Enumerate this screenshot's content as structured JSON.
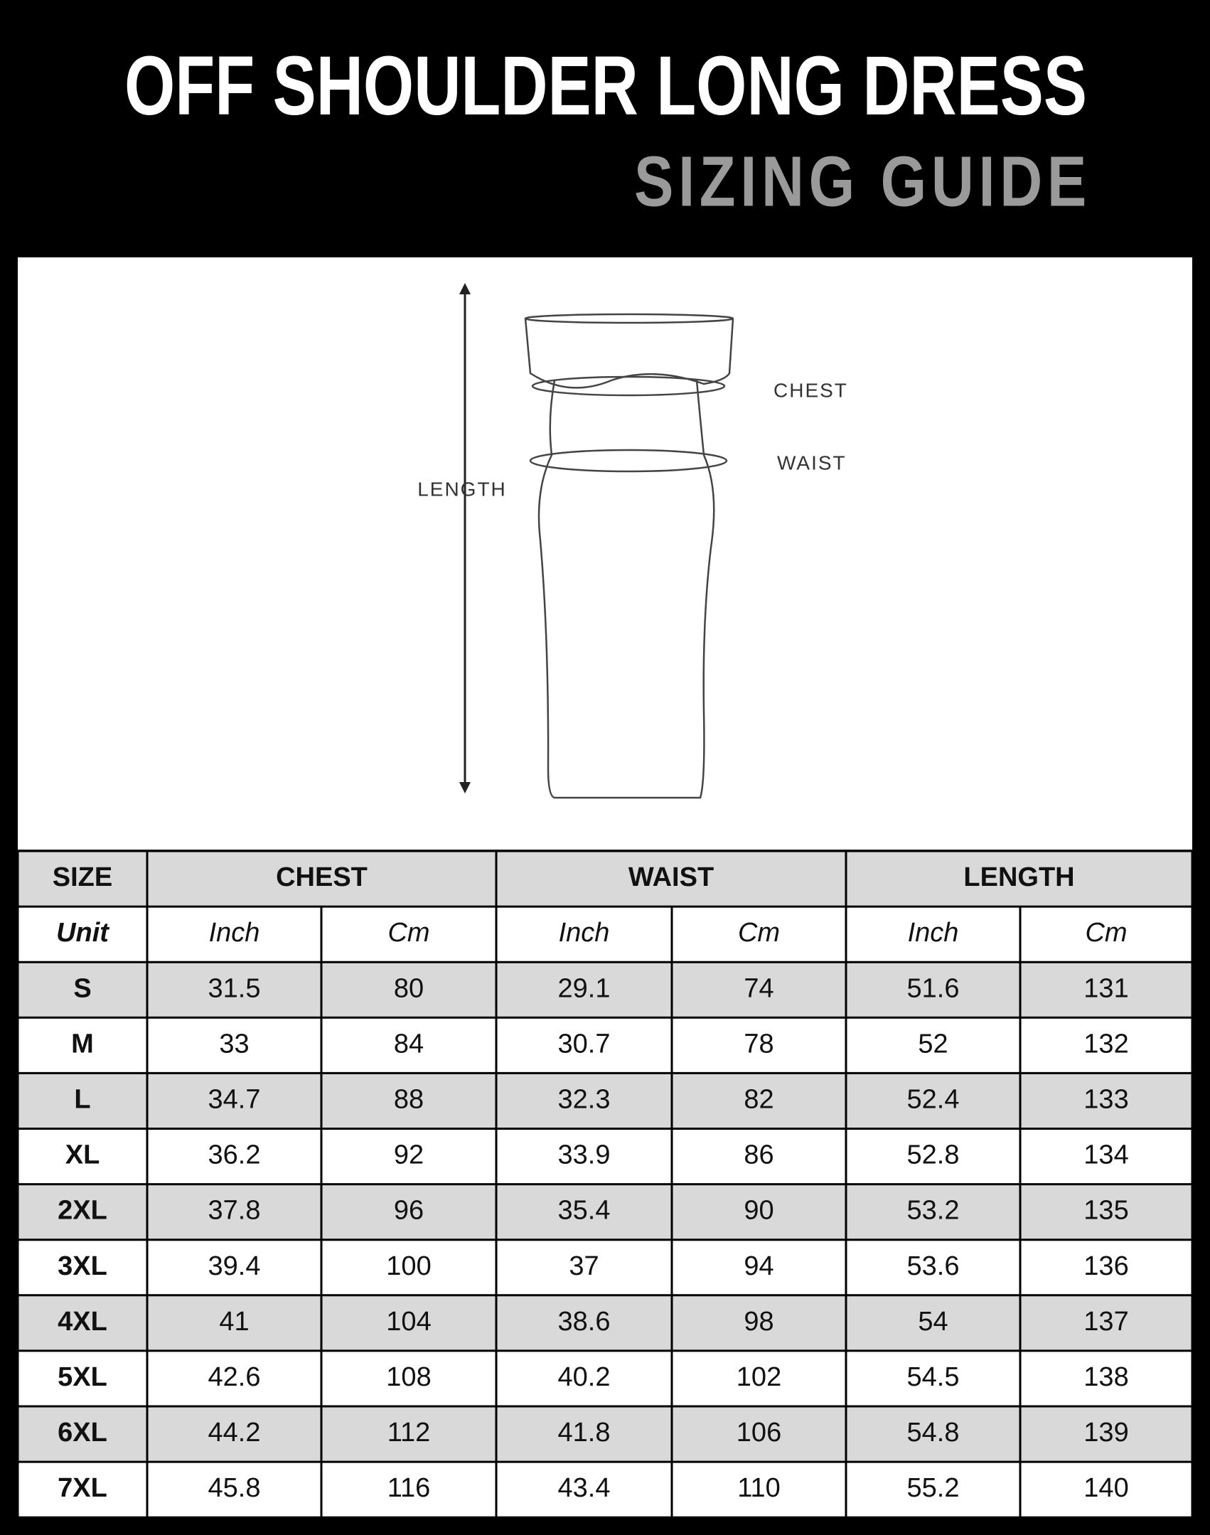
{
  "header": {
    "title": "OFF SHOULDER LONG DRESS",
    "subtitle": "SIZING GUIDE"
  },
  "diagram": {
    "chest": "CHEST",
    "waist": "WAIST",
    "length": "LENGTH"
  },
  "table": {
    "header": [
      "SIZE",
      "CHEST",
      "WAIST",
      "LENGTH"
    ],
    "units": [
      "Unit",
      "Inch",
      "Cm",
      "Inch",
      "Cm",
      "Inch",
      "Cm"
    ],
    "rows": [
      [
        "S",
        31.5,
        80,
        29.1,
        74,
        51.6,
        131
      ],
      [
        "M",
        33,
        84,
        30.7,
        78,
        52,
        132
      ],
      [
        "L",
        34.7,
        88,
        32.3,
        82,
        52.4,
        133
      ],
      [
        "XL",
        36.2,
        92,
        33.9,
        86,
        52.8,
        134
      ],
      [
        "2XL",
        37.8,
        96,
        35.4,
        90,
        53.2,
        135
      ],
      [
        "3XL",
        39.4,
        100,
        37,
        94,
        53.6,
        136
      ],
      [
        "4XL",
        41,
        104,
        38.6,
        98,
        54,
        137
      ],
      [
        "5XL",
        42.6,
        108,
        40.2,
        102,
        54.5,
        138
      ],
      [
        "6XL",
        44.2,
        112,
        41.8,
        106,
        54.8,
        139
      ],
      [
        "7XL",
        45.8,
        116,
        43.4,
        110,
        55.2,
        140
      ]
    ]
  }
}
